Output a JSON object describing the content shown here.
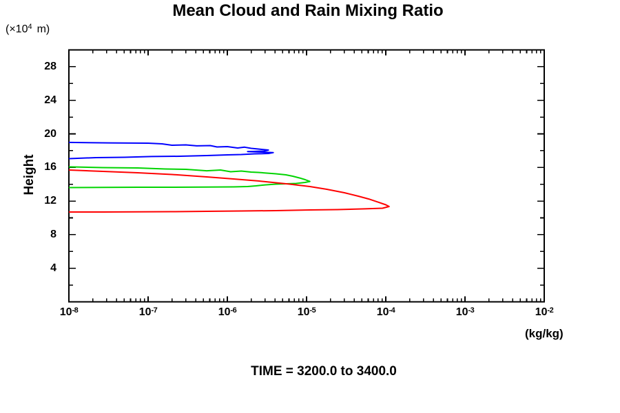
{
  "chart_data": {
    "type": "line",
    "title": "Mean Cloud and Rain Mixing Ratio",
    "ylabel_text": "Height",
    "y_unit": {
      "prefix": "(×10",
      "exp": "4",
      "suffix": "m)"
    },
    "xlabel": "(kg/kg)",
    "annotation": "TIME = 3200.0 to 3400.0",
    "x_scale": "log",
    "xlim": [
      1e-08,
      0.01
    ],
    "ylim": [
      0,
      30
    ],
    "x_ticks_exponents": [
      -8,
      -7,
      -6,
      -5,
      -4,
      -3,
      -2
    ],
    "y_major_ticks": [
      4,
      8,
      12,
      16,
      20,
      24,
      28
    ],
    "y_minor_step": 2,
    "grid": false,
    "legend": "none",
    "frame": "full-box-inward-ticks",
    "axis_color": "#000000",
    "series": [
      {
        "name": "blue",
        "color": "#0000ff",
        "points": [
          [
            1e-08,
            18.98
          ],
          [
            3.3e-08,
            18.93
          ],
          [
            1e-07,
            18.89
          ],
          [
            1.5e-07,
            18.81
          ],
          [
            2e-07,
            18.65
          ],
          [
            3e-07,
            18.69
          ],
          [
            4.1e-07,
            18.57
          ],
          [
            6.1e-07,
            18.61
          ],
          [
            7.4e-07,
            18.44
          ],
          [
            1e-06,
            18.48
          ],
          [
            1.35e-06,
            18.32
          ],
          [
            1.65e-06,
            18.42
          ],
          [
            2e-06,
            18.28
          ],
          [
            2.46e-06,
            18.2
          ],
          [
            3.3e-06,
            18.07
          ],
          [
            2.9e-06,
            17.95
          ],
          [
            1.8e-06,
            17.89
          ],
          [
            2.6e-06,
            17.84
          ],
          [
            3.8e-06,
            17.77
          ],
          [
            3.3e-06,
            17.66
          ],
          [
            2.2e-06,
            17.62
          ],
          [
            1.5e-06,
            17.54
          ],
          [
            1e-06,
            17.5
          ],
          [
            5.5e-07,
            17.42
          ],
          [
            2.5e-07,
            17.34
          ],
          [
            1.1e-07,
            17.3
          ],
          [
            5e-08,
            17.21
          ],
          [
            2.2e-08,
            17.17
          ],
          [
            1e-08,
            17.05
          ]
        ]
      },
      {
        "name": "green",
        "color": "#00d400",
        "points": [
          [
            1e-08,
            16.07
          ],
          [
            2.7e-08,
            15.98
          ],
          [
            7.4e-08,
            15.94
          ],
          [
            1.65e-07,
            15.82
          ],
          [
            3e-07,
            15.78
          ],
          [
            5.5e-07,
            15.61
          ],
          [
            8.2e-07,
            15.7
          ],
          [
            1.1e-06,
            15.49
          ],
          [
            1.5e-06,
            15.57
          ],
          [
            2e-06,
            15.45
          ],
          [
            2.46e-06,
            15.41
          ],
          [
            4.1e-06,
            15.25
          ],
          [
            5.5e-06,
            15.12
          ],
          [
            6.7e-06,
            14.96
          ],
          [
            8.2e-06,
            14.75
          ],
          [
            9.6e-06,
            14.55
          ],
          [
            1.1e-05,
            14.34
          ],
          [
            9.6e-06,
            14.22
          ],
          [
            7.4e-06,
            14.1
          ],
          [
            5.5e-06,
            14.06
          ],
          [
            4.1e-06,
            14.02
          ],
          [
            3e-06,
            13.93
          ],
          [
            2.3e-06,
            13.81
          ],
          [
            1.8e-06,
            13.73
          ],
          [
            1.2e-06,
            13.69
          ],
          [
            5.5e-07,
            13.66
          ],
          [
            2e-07,
            13.65
          ],
          [
            7.4e-08,
            13.65
          ],
          [
            2.7e-08,
            13.63
          ],
          [
            1e-08,
            13.61
          ]
        ]
      },
      {
        "name": "red",
        "color": "#ff0000",
        "points": [
          [
            1e-08,
            15.7
          ],
          [
            2.7e-08,
            15.53
          ],
          [
            7.4e-08,
            15.37
          ],
          [
            2e-07,
            15.16
          ],
          [
            5.5e-07,
            14.88
          ],
          [
            1.2e-06,
            14.63
          ],
          [
            2.46e-06,
            14.39
          ],
          [
            6.1e-06,
            14.02
          ],
          [
            1.1e-05,
            13.73
          ],
          [
            1.8e-05,
            13.4
          ],
          [
            3e-05,
            12.99
          ],
          [
            4.5e-05,
            12.58
          ],
          [
            6.1e-05,
            12.25
          ],
          [
            8.2e-05,
            11.84
          ],
          [
            0.0001,
            11.56
          ],
          [
            0.00011,
            11.35
          ],
          [
            9.1e-05,
            11.15
          ],
          [
            5.5e-05,
            11.07
          ],
          [
            2.46e-05,
            10.98
          ],
          [
            1.1e-05,
            10.94
          ],
          [
            4.1e-06,
            10.86
          ],
          [
            1.5e-06,
            10.82
          ],
          [
            5.5e-07,
            10.78
          ],
          [
            2e-07,
            10.74
          ],
          [
            7.4e-08,
            10.71
          ],
          [
            2.7e-08,
            10.7
          ],
          [
            1e-08,
            10.7
          ]
        ]
      }
    ]
  }
}
